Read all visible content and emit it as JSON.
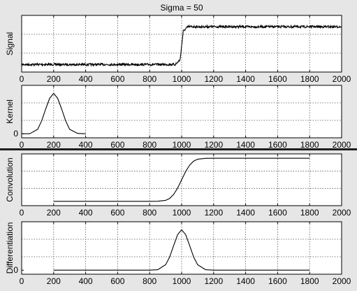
{
  "window": {
    "title": "Sigma = 50"
  },
  "chart_data": [
    {
      "type": "line",
      "title": "Sigma = 50",
      "xlabel": "",
      "ylabel": "Signal",
      "xlim": [
        0,
        2000
      ],
      "xticks": [
        0,
        200,
        400,
        600,
        800,
        1000,
        1200,
        1400,
        1600,
        1800,
        2000
      ],
      "yticks": [],
      "ylim": [
        -0.2,
        1.3
      ],
      "grid": true,
      "noise": true,
      "series": [
        {
          "x": [
            0,
            960,
            990,
            1000,
            1010,
            1040,
            2000
          ],
          "y": [
            0,
            0,
            0.12,
            0.5,
            0.88,
            1.0,
            1.0
          ]
        }
      ]
    },
    {
      "type": "line",
      "title": "",
      "xlabel": "",
      "ylabel": "Kernel",
      "xlim": [
        0,
        2000
      ],
      "xticks": [
        0,
        200,
        400,
        600,
        800,
        1000,
        1200,
        1400,
        1600,
        1800,
        2000
      ],
      "yticks": [
        0
      ],
      "ylim": [
        -0.1,
        1.2
      ],
      "grid": true,
      "series": [
        {
          "x": [
            0,
            50,
            100,
            125,
            150,
            175,
            200,
            225,
            250,
            275,
            300,
            350,
            400
          ],
          "y": [
            0,
            0.001,
            0.11,
            0.32,
            0.61,
            0.88,
            1.0,
            0.88,
            0.61,
            0.32,
            0.11,
            0.01,
            0
          ]
        }
      ]
    },
    {
      "type": "line",
      "title": "",
      "xlabel": "",
      "ylabel": "Convolution",
      "xlim": [
        0,
        2000
      ],
      "xticks": [
        0,
        200,
        400,
        600,
        800,
        1000,
        1200,
        1400,
        1600,
        1800,
        2000
      ],
      "yticks": [],
      "ylim": [
        -0.1,
        1.1
      ],
      "grid": true,
      "series": [
        {
          "x": [
            200,
            800,
            850,
            900,
            925,
            950,
            975,
            1000,
            1025,
            1050,
            1075,
            1100,
            1150,
            1200,
            1800
          ],
          "y": [
            0,
            0,
            0.002,
            0.023,
            0.067,
            0.159,
            0.309,
            0.5,
            0.691,
            0.841,
            0.933,
            0.977,
            0.998,
            1.0,
            1.0
          ]
        }
      ]
    },
    {
      "type": "line",
      "title": "",
      "xlabel": "",
      "ylabel": "Differentiation",
      "xlim": [
        0,
        2000
      ],
      "xticks": [
        0,
        200,
        400,
        600,
        800,
        1000,
        1200,
        1400,
        1600,
        1800,
        2000
      ],
      "yticks": [
        0
      ],
      "ylim": [
        -0.1,
        1.2
      ],
      "grid": true,
      "series": [
        {
          "x": [
            200,
            800,
            850,
            900,
            925,
            950,
            975,
            1000,
            1025,
            1050,
            1075,
            1100,
            1150,
            1200,
            1800
          ],
          "y": [
            0,
            0,
            0.011,
            0.135,
            0.325,
            0.607,
            0.882,
            1.0,
            0.882,
            0.607,
            0.325,
            0.135,
            0.011,
            0,
            0
          ]
        }
      ]
    }
  ]
}
